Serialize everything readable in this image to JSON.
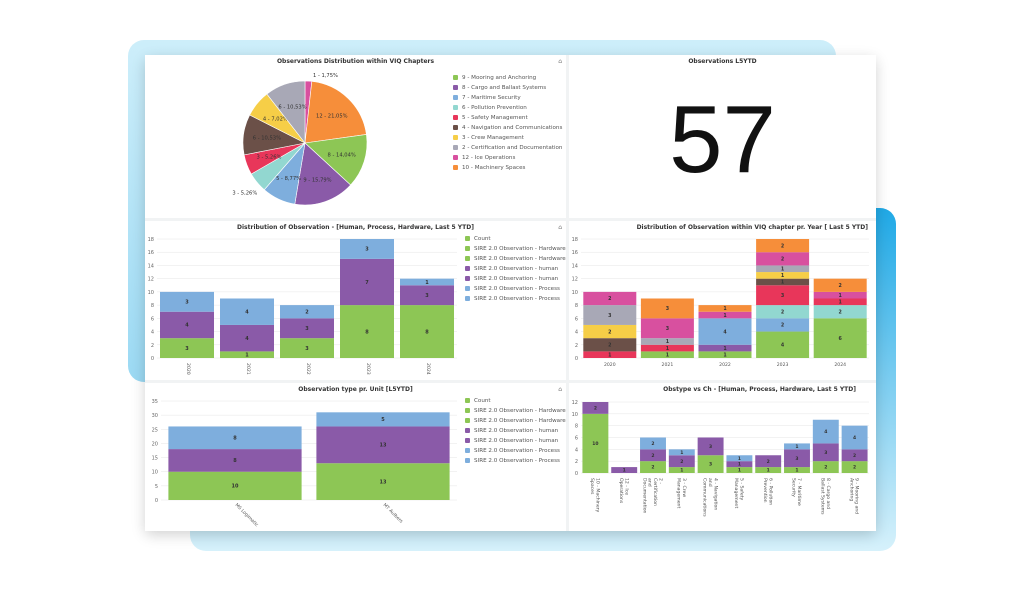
{
  "colors": {
    "green": "#8dc655",
    "purple": "#8a5aa8",
    "blue": "#7eaedd",
    "teal": "#92d7d0",
    "red": "#e8365a",
    "brown": "#6b5048",
    "yellow": "#f6ce47",
    "gray": "#a8a8b6",
    "magenta": "#d8509f",
    "orange": "#f68e3a"
  },
  "kpi": {
    "title": "Observations L5YTD",
    "value": "57"
  },
  "chart_data": [
    {
      "type": "pie",
      "title": "Observations Distribution within VIQ Chapters",
      "slices": [
        {
          "label": "1 - 1,75%",
          "value": 1,
          "color": "magenta"
        },
        {
          "label": "12 - 21,05%",
          "value": 12,
          "color": "orange"
        },
        {
          "label": "8 - 14,04%",
          "value": 8,
          "color": "green"
        },
        {
          "label": "9 - 15,79%",
          "value": 9,
          "color": "purple"
        },
        {
          "label": "5 - 8,77%",
          "value": 5,
          "color": "blue"
        },
        {
          "label": "3 - 5,26%",
          "value": 3,
          "color": "teal"
        },
        {
          "label": "3 - 5,26%",
          "value": 3,
          "color": "red"
        },
        {
          "label": "6 - 10,53%",
          "value": 6,
          "color": "brown"
        },
        {
          "label": "4 - 7,02%",
          "value": 4,
          "color": "yellow"
        },
        {
          "label": "6 - 10,53%",
          "value": 6,
          "color": "gray"
        }
      ],
      "legend": [
        {
          "label": "9 - Mooring and Anchoring",
          "color": "green"
        },
        {
          "label": "8 - Cargo and Ballast Systems",
          "color": "purple"
        },
        {
          "label": "7 - Maritime Security",
          "color": "blue"
        },
        {
          "label": "6 - Pollution Prevention",
          "color": "teal"
        },
        {
          "label": "5 - Safety Management",
          "color": "red"
        },
        {
          "label": "4 - Navigation and Communications",
          "color": "brown"
        },
        {
          "label": "3 - Crew Management",
          "color": "yellow"
        },
        {
          "label": "2 - Certification and Documentation",
          "color": "gray"
        },
        {
          "label": "12 - Ice Operations",
          "color": "magenta"
        },
        {
          "label": "10 - Machinery Spaces",
          "color": "orange"
        }
      ],
      "legend_position": "right"
    },
    {
      "type": "bar",
      "stacked": true,
      "title": "Distribution of Observation - [Human, Process, Hardware, Last 5 YTD]",
      "categories": [
        "2020",
        "2021",
        "2022",
        "2023",
        "2024"
      ],
      "ylim": [
        0,
        18
      ],
      "yticks": [
        0,
        2,
        4,
        6,
        8,
        10,
        12,
        14,
        16,
        18
      ],
      "grid": true,
      "series": [
        {
          "color": "green",
          "values": [
            3,
            1,
            3,
            8,
            8
          ]
        },
        {
          "color": "purple",
          "values": [
            4,
            4,
            3,
            7,
            3
          ]
        },
        {
          "color": "blue",
          "values": [
            3,
            4,
            2,
            3,
            1
          ]
        }
      ],
      "legend": [
        {
          "label": "Count",
          "color": "green"
        },
        {
          "label": "SIRE 2.0 Observation - Hardware",
          "color": "green"
        },
        {
          "label": "SIRE 2.0 Observation - Hardware",
          "color": "green"
        },
        {
          "label": "SIRE 2.0 Observation - human",
          "color": "purple"
        },
        {
          "label": "SIRE 2.0 Observation - human",
          "color": "purple"
        },
        {
          "label": "SIRE 2.0 Observation - Process",
          "color": "blue"
        },
        {
          "label": "SIRE 2.0 Observation - Process",
          "color": "blue"
        }
      ],
      "legend_position": "right"
    },
    {
      "type": "bar",
      "stacked": true,
      "title": "Distribution of Observation within VIQ chapter pr. Year [ Last 5 YTD]",
      "categories": [
        "2020",
        "2021",
        "2022",
        "2023",
        "2024"
      ],
      "ylim": [
        0,
        18
      ],
      "yticks": [
        0,
        2,
        4,
        6,
        8,
        10,
        12,
        14,
        16,
        18
      ],
      "grid": true,
      "series": [
        {
          "color": "green",
          "values": [
            0,
            1,
            1,
            4,
            6
          ]
        },
        {
          "color": "purple",
          "values": [
            0,
            0,
            1,
            0,
            0
          ]
        },
        {
          "color": "blue",
          "values": [
            0,
            0,
            4,
            2,
            0
          ]
        },
        {
          "color": "teal",
          "values": [
            0,
            0,
            0,
            2,
            2
          ]
        },
        {
          "color": "red",
          "values": [
            1,
            1,
            0,
            3,
            1
          ]
        },
        {
          "color": "brown",
          "values": [
            2,
            0,
            0,
            1,
            0
          ]
        },
        {
          "color": "yellow",
          "values": [
            2,
            0,
            0,
            1,
            0
          ]
        },
        {
          "color": "gray",
          "values": [
            3,
            1,
            0,
            1,
            0
          ]
        },
        {
          "color": "magenta",
          "values": [
            2,
            3,
            1,
            2,
            1
          ]
        },
        {
          "color": "orange",
          "values": [
            0,
            3,
            1,
            2,
            2
          ]
        }
      ]
    },
    {
      "type": "bar",
      "stacked": true,
      "title": "Observation type pr. Unit [L5YTD]",
      "categories": [
        "MS Logimatic",
        "MT Aulbers"
      ],
      "ylim": [
        0,
        35
      ],
      "yticks": [
        0,
        5,
        10,
        15,
        20,
        25,
        30,
        35
      ],
      "grid": true,
      "series": [
        {
          "color": "green",
          "values": [
            10,
            13
          ]
        },
        {
          "color": "purple",
          "values": [
            8,
            13
          ]
        },
        {
          "color": "blue",
          "values": [
            8,
            5
          ]
        }
      ],
      "legend": [
        {
          "label": "Count",
          "color": "green"
        },
        {
          "label": "SIRE 2.0 Observation - Hardware",
          "color": "green"
        },
        {
          "label": "SIRE 2.0 Observation - Hardware",
          "color": "green"
        },
        {
          "label": "SIRE 2.0 Observation - human",
          "color": "purple"
        },
        {
          "label": "SIRE 2.0 Observation - human",
          "color": "purple"
        },
        {
          "label": "SIRE 2.0 Observation - Process",
          "color": "blue"
        },
        {
          "label": "SIRE 2.0 Observation - Process",
          "color": "blue"
        }
      ],
      "legend_position": "right"
    },
    {
      "type": "bar",
      "stacked": true,
      "title": "Obstype vs Ch - [Human, Process, Hardware, Last 5 YTD]",
      "categories": [
        "10 - Machinery Spaces",
        "12 - Ice Operations",
        "2 - Certification and Documentation",
        "3 - Crew Management",
        "4 - Navigation and Communications",
        "5 - Safety Management",
        "6 - Pollution Prevention",
        "7 - Maritime Security",
        "8 - Cargo and Ballast Systems",
        "9 - Mooring and Anchoring"
      ],
      "ylim": [
        0,
        12
      ],
      "yticks": [
        0,
        2,
        4,
        6,
        8,
        10,
        12
      ],
      "grid": true,
      "series": [
        {
          "color": "green",
          "values": [
            10,
            0,
            2,
            1,
            3,
            1,
            1,
            1,
            2,
            2
          ]
        },
        {
          "color": "purple",
          "values": [
            2,
            1,
            2,
            2,
            3,
            1,
            2,
            3,
            3,
            2
          ]
        },
        {
          "color": "blue",
          "values": [
            0,
            0,
            2,
            1,
            0,
            1,
            0,
            1,
            4,
            4
          ]
        }
      ]
    }
  ]
}
